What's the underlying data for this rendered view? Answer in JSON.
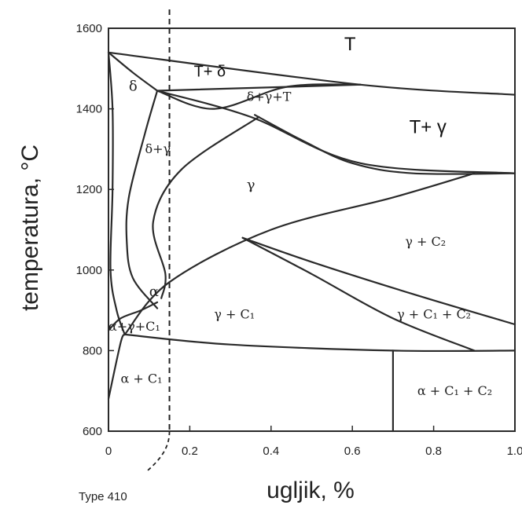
{
  "chart_data": {
    "type": "line",
    "title": "",
    "xlabel": "ugljik, %",
    "ylabel": "temperatura, °C",
    "xlim": [
      0,
      1.0
    ],
    "ylim": [
      600,
      1600
    ],
    "x_ticks": [
      "0",
      "0.2",
      "0.4",
      "0.6",
      "0.8",
      "1.0"
    ],
    "y_ticks": [
      "600",
      "800",
      "1000",
      "1200",
      "1400",
      "1600"
    ],
    "grid": false,
    "reference_line": {
      "x": 0.15,
      "style": "dashed",
      "label": "Type 410"
    },
    "regions": [
      {
        "label": "T",
        "x": 0.58,
        "y": 1545
      },
      {
        "label": "T+ δ",
        "x": 0.21,
        "y": 1480
      },
      {
        "label": "δ",
        "x": 0.05,
        "y": 1445
      },
      {
        "label": "δ+γ+T",
        "x": 0.34,
        "y": 1420
      },
      {
        "label": "T+ γ",
        "x": 0.74,
        "y": 1340
      },
      {
        "label": "δ+γ",
        "x": 0.09,
        "y": 1290
      },
      {
        "label": "γ",
        "x": 0.34,
        "y": 1200
      },
      {
        "label": "γ + C₂",
        "x": 0.73,
        "y": 1060
      },
      {
        "label": "α",
        "x": 0.1,
        "y": 935
      },
      {
        "label": "γ + C₁",
        "x": 0.26,
        "y": 880
      },
      {
        "label": "γ + C₁ + C₂",
        "x": 0.71,
        "y": 880
      },
      {
        "label": "α+γ+C₁",
        "x": 0.0,
        "y": 850
      },
      {
        "label": "α + C₁",
        "x": 0.03,
        "y": 720
      },
      {
        "label": "α + C₁ + C₂",
        "x": 0.76,
        "y": 690
      }
    ],
    "boundaries": [
      {
        "id": "liquidus-upper",
        "points": [
          [
            0,
            1540
          ],
          [
            0.62,
            1460
          ],
          [
            1.0,
            1435
          ]
        ]
      },
      {
        "id": "delta-liquid-line",
        "points": [
          [
            0,
            1540
          ],
          [
            0.06,
            1490
          ],
          [
            0.12,
            1445
          ]
        ]
      },
      {
        "id": "delta-outer",
        "points": [
          [
            0,
            1540
          ],
          [
            0.01,
            1400
          ],
          [
            0.01,
            1200
          ],
          [
            0.005,
            1000
          ],
          [
            0.02,
            900
          ],
          [
            0.04,
            840
          ]
        ]
      },
      {
        "id": "peritectic-horizontal",
        "points": [
          [
            0.12,
            1445
          ],
          [
            0.62,
            1460
          ]
        ]
      },
      {
        "id": "gamma-liquid-upper",
        "points": [
          [
            0.12,
            1445
          ],
          [
            0.35,
            1380
          ],
          [
            0.62,
            1265
          ],
          [
            1.0,
            1240
          ]
        ]
      },
      {
        "id": "gamma-solidus",
        "points": [
          [
            0.12,
            1445
          ],
          [
            0.26,
            1400
          ],
          [
            0.44,
            1455
          ],
          [
            0.62,
            1460
          ]
        ]
      },
      {
        "id": "liquidus-lower",
        "points": [
          [
            0.36,
            1385
          ],
          [
            0.48,
            1320
          ],
          [
            0.6,
            1265
          ],
          [
            0.75,
            1240
          ],
          [
            1.0,
            1240
          ]
        ]
      },
      {
        "id": "gamma-delta-loop",
        "points": [
          [
            0.12,
            1445
          ],
          [
            0.09,
            1340
          ],
          [
            0.05,
            1180
          ],
          [
            0.045,
            1070
          ],
          [
            0.06,
            980
          ],
          [
            0.12,
            905
          ]
        ]
      },
      {
        "id": "gamma-loop-right",
        "points": [
          [
            0.37,
            1380
          ],
          [
            0.18,
            1250
          ],
          [
            0.11,
            1120
          ],
          [
            0.14,
            990
          ],
          [
            0.13,
            930
          ]
        ]
      },
      {
        "id": "acm-line",
        "points": [
          [
            0.04,
            840
          ],
          [
            0.15,
            970
          ],
          [
            0.4,
            1100
          ],
          [
            0.7,
            1180
          ],
          [
            0.9,
            1240
          ]
        ]
      },
      {
        "id": "c1-c2-upper",
        "points": [
          [
            0.33,
            1080
          ],
          [
            0.5,
            1020
          ],
          [
            0.75,
            940
          ],
          [
            1.0,
            865
          ]
        ]
      },
      {
        "id": "c1-c2-lower",
        "points": [
          [
            0.33,
            1080
          ],
          [
            0.5,
            990
          ],
          [
            0.7,
            880
          ],
          [
            0.9,
            800
          ]
        ]
      },
      {
        "id": "alpha-solvus",
        "points": [
          [
            0.04,
            840
          ],
          [
            0.3,
            815
          ],
          [
            0.7,
            800
          ],
          [
            1.0,
            800
          ]
        ]
      },
      {
        "id": "eutectoid-left",
        "points": [
          [
            0,
            680
          ],
          [
            0.03,
            820
          ],
          [
            0.04,
            840
          ]
        ]
      },
      {
        "id": "alpha-inner",
        "points": [
          [
            0,
            850
          ],
          [
            0.03,
            880
          ],
          [
            0.08,
            900
          ],
          [
            0.12,
            920
          ]
        ]
      },
      {
        "id": "c2-vertical",
        "points": [
          [
            0.7,
            600
          ],
          [
            0.7,
            800
          ]
        ]
      }
    ]
  }
}
